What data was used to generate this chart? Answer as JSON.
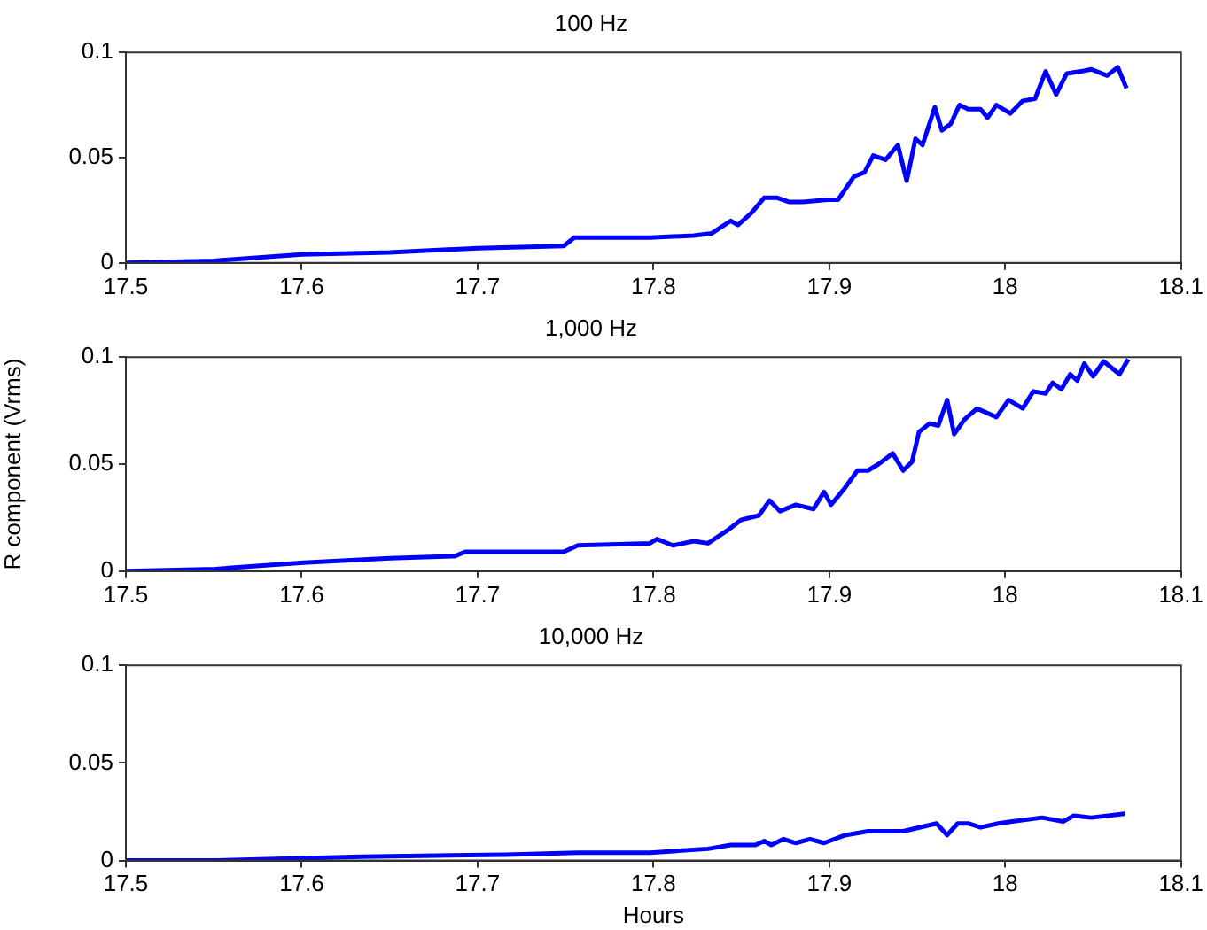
{
  "chart_data": [
    {
      "type": "line",
      "title": "100 Hz",
      "xlim": [
        17.5,
        18.1
      ],
      "xticks": [
        17.5,
        17.6,
        17.7,
        17.8,
        17.9,
        18,
        18.1
      ],
      "ylim": [
        0,
        0.1
      ],
      "yticks": [
        0,
        0.05,
        0.1
      ],
      "grid": false,
      "legend": false,
      "marker": "none",
      "line_style": "solid",
      "series": [
        {
          "color": "#0000ff",
          "x": [
            17.5,
            17.55,
            17.6,
            17.65,
            17.7,
            17.749,
            17.755,
            17.765,
            17.798,
            17.823,
            17.833,
            17.844,
            17.848,
            17.856,
            17.863,
            17.87,
            17.877,
            17.885,
            17.899,
            17.905,
            17.914,
            17.92,
            17.925,
            17.932,
            17.939,
            17.944,
            17.949,
            17.953,
            17.96,
            17.964,
            17.969,
            17.974,
            17.979,
            17.986,
            17.99,
            17.995,
            18.003,
            18.01,
            18.017,
            18.023,
            18.029,
            18.035,
            18.043,
            18.049,
            18.058,
            18.064,
            18.069
          ],
          "values": [
            0,
            0.001,
            0.004,
            0.005,
            0.007,
            0.008,
            0.012,
            0.012,
            0.012,
            0.013,
            0.014,
            0.02,
            0.018,
            0.024,
            0.031,
            0.031,
            0.029,
            0.029,
            0.03,
            0.03,
            0.041,
            0.043,
            0.051,
            0.049,
            0.056,
            0.039,
            0.059,
            0.056,
            0.074,
            0.063,
            0.066,
            0.075,
            0.073,
            0.073,
            0.069,
            0.075,
            0.071,
            0.077,
            0.078,
            0.091,
            0.08,
            0.09,
            0.091,
            0.092,
            0.089,
            0.093,
            0.083
          ]
        }
      ]
    },
    {
      "type": "line",
      "title": "1,000 Hz",
      "ylabel": "R component (Vrms)",
      "xlim": [
        17.5,
        18.1
      ],
      "xticks": [
        17.5,
        17.6,
        17.7,
        17.8,
        17.9,
        18,
        18.1
      ],
      "ylim": [
        0,
        0.1
      ],
      "yticks": [
        0,
        0.05,
        0.1
      ],
      "grid": false,
      "legend": false,
      "marker": "none",
      "line_style": "solid",
      "series": [
        {
          "color": "#0000ff",
          "x": [
            17.5,
            17.551,
            17.601,
            17.65,
            17.687,
            17.693,
            17.749,
            17.757,
            17.798,
            17.802,
            17.811,
            17.823,
            17.831,
            17.842,
            17.85,
            17.86,
            17.866,
            17.872,
            17.881,
            17.891,
            17.897,
            17.901,
            17.909,
            17.916,
            17.922,
            17.928,
            17.936,
            17.942,
            17.947,
            17.951,
            17.957,
            17.962,
            17.967,
            17.971,
            17.977,
            17.984,
            17.995,
            18.002,
            18.01,
            18.016,
            18.023,
            18.027,
            18.032,
            18.037,
            18.041,
            18.045,
            18.05,
            18.056,
            18.065,
            18.07
          ],
          "values": [
            0,
            0.001,
            0.004,
            0.006,
            0.007,
            0.009,
            0.009,
            0.012,
            0.013,
            0.015,
            0.012,
            0.014,
            0.013,
            0.019,
            0.024,
            0.026,
            0.033,
            0.028,
            0.031,
            0.029,
            0.037,
            0.031,
            0.039,
            0.047,
            0.047,
            0.05,
            0.055,
            0.047,
            0.051,
            0.065,
            0.069,
            0.068,
            0.08,
            0.064,
            0.071,
            0.076,
            0.072,
            0.08,
            0.076,
            0.084,
            0.083,
            0.088,
            0.085,
            0.092,
            0.089,
            0.097,
            0.091,
            0.098,
            0.092,
            0.099
          ]
        }
      ]
    },
    {
      "type": "line",
      "title": "10,000 Hz",
      "xlabel": "Hours",
      "xlim": [
        17.5,
        18.1
      ],
      "xticks": [
        17.5,
        17.6,
        17.7,
        17.8,
        17.9,
        18,
        18.1
      ],
      "ylim": [
        0,
        0.1
      ],
      "yticks": [
        0,
        0.05,
        0.1
      ],
      "grid": false,
      "legend": false,
      "marker": "none",
      "line_style": "solid",
      "series": [
        {
          "color": "#0000ff",
          "x": [
            17.5,
            17.551,
            17.634,
            17.716,
            17.757,
            17.798,
            17.831,
            17.844,
            17.858,
            17.863,
            17.867,
            17.874,
            17.881,
            17.889,
            17.897,
            17.909,
            17.922,
            17.942,
            17.961,
            17.967,
            17.973,
            17.979,
            17.986,
            17.996,
            18.004,
            18.021,
            18.033,
            18.039,
            18.049,
            18.068
          ],
          "values": [
            0,
            0,
            0.002,
            0.003,
            0.004,
            0.004,
            0.006,
            0.008,
            0.008,
            0.01,
            0.008,
            0.011,
            0.009,
            0.011,
            0.009,
            0.013,
            0.015,
            0.015,
            0.019,
            0.013,
            0.019,
            0.019,
            0.017,
            0.019,
            0.02,
            0.022,
            0.02,
            0.023,
            0.022,
            0.024
          ]
        }
      ]
    }
  ]
}
